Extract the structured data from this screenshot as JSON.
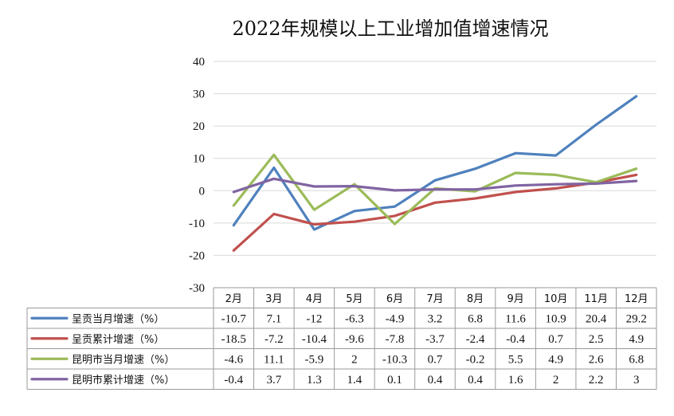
{
  "chart_data": {
    "type": "line",
    "title": "2022年规模以上工业增加值增速情况",
    "categories": [
      "2月",
      "3月",
      "4月",
      "5月",
      "6月",
      "7月",
      "8月",
      "9月",
      "10月",
      "11月",
      "12月"
    ],
    "ylim": [
      -30,
      40
    ],
    "yticks": [
      40,
      30,
      20,
      10,
      0,
      -10,
      -20,
      -30
    ],
    "grid": true,
    "legend": "data-table-left",
    "series": [
      {
        "name": "呈贡当月增速（%）",
        "color": "#4f81bd",
        "values": [
          -10.7,
          7.1,
          -12,
          -6.3,
          -4.9,
          3.2,
          6.8,
          11.6,
          10.9,
          20.4,
          29.2
        ]
      },
      {
        "name": "呈贡累计增速（%）",
        "color": "#c0504d",
        "values": [
          -18.5,
          -7.2,
          -10.4,
          -9.6,
          -7.8,
          -3.7,
          -2.4,
          -0.4,
          0.7,
          2.5,
          4.9
        ]
      },
      {
        "name": "昆明市当月增速（%）",
        "color": "#9bbb59",
        "values": [
          -4.6,
          11.1,
          -5.9,
          2,
          -10.3,
          0.7,
          -0.2,
          5.5,
          4.9,
          2.6,
          6.8
        ]
      },
      {
        "name": "昆明市累计增速（%）",
        "color": "#8064a2",
        "values": [
          -0.4,
          3.7,
          1.3,
          1.4,
          0.1,
          0.4,
          0.4,
          1.6,
          2,
          2.2,
          3
        ]
      }
    ]
  }
}
